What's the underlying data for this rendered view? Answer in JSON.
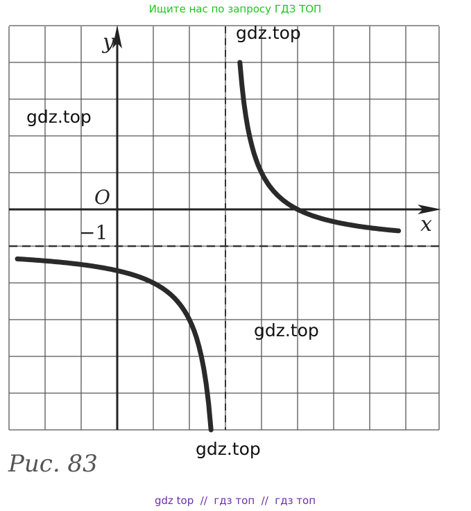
{
  "header": {
    "title": "Ищите нас по запросу ГДЗ ТОП"
  },
  "figure": {
    "y_label": "y",
    "x_label": "x",
    "origin_label": "O",
    "minus_one_label": "−1",
    "watermarks": [
      "gdz.top",
      "gdz.top",
      "gdz.top",
      "gdz.top"
    ]
  },
  "caption": "Рис. 83",
  "footer": "gdz top  //  гдз топ  //  гдз топ"
}
